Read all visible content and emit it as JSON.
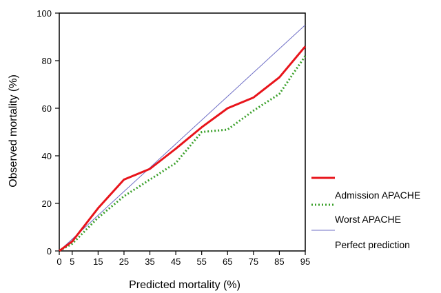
{
  "chart_data": {
    "type": "line",
    "title": "",
    "xlabel": "Predicted mortality (%)",
    "ylabel": "Observed mortality (%)",
    "x": [
      0,
      5,
      15,
      25,
      35,
      45,
      55,
      65,
      75,
      85,
      95
    ],
    "xlim": [
      0,
      95
    ],
    "ylim": [
      0,
      100
    ],
    "xticks": [
      "0",
      "5",
      "15",
      "25",
      "35",
      "45",
      "55",
      "65",
      "75",
      "85",
      "95"
    ],
    "yticks": [
      "0",
      "20",
      "40",
      "60",
      "80",
      "100"
    ],
    "grid": false,
    "legend_position": "right",
    "legend": [
      "Admission APACHE",
      "Worst APACHE",
      "Perfect prediction"
    ],
    "series": [
      {
        "name": "Admission APACHE",
        "color": "#e8141b",
        "style": "solid-thick",
        "values": [
          0,
          4,
          18,
          30,
          34.5,
          43,
          52,
          60,
          64.5,
          73,
          86
        ]
      },
      {
        "name": "Worst APACHE",
        "color": "#3aa02a",
        "style": "dotted",
        "values": [
          0,
          3,
          14,
          23,
          30,
          37,
          50,
          51,
          59,
          66,
          82
        ]
      },
      {
        "name": "Perfect prediction",
        "color": "#6f6fc6",
        "style": "thin",
        "values": [
          0,
          5,
          15,
          25,
          35,
          45,
          55,
          65,
          75,
          85,
          95
        ]
      }
    ]
  }
}
